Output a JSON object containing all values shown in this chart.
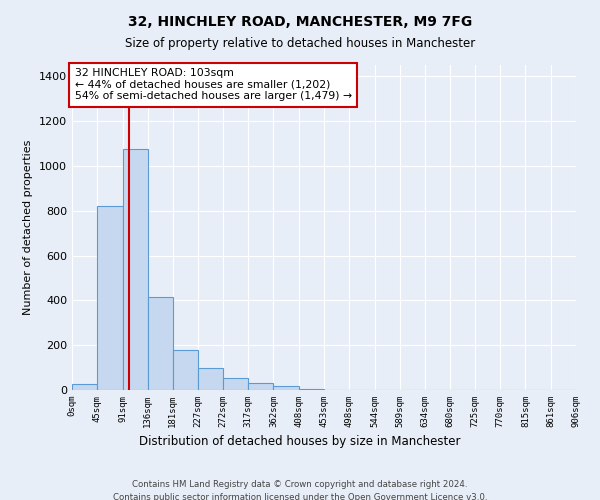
{
  "title1": "32, HINCHLEY ROAD, MANCHESTER, M9 7FG",
  "title2": "Size of property relative to detached houses in Manchester",
  "xlabel": "Distribution of detached houses by size in Manchester",
  "ylabel": "Number of detached properties",
  "bar_values": [
    25,
    820,
    1075,
    415,
    178,
    98,
    55,
    30,
    18,
    5,
    2,
    1,
    0,
    0,
    0,
    0,
    0,
    0,
    0,
    0
  ],
  "bin_edges": [
    0,
    45,
    91,
    136,
    181,
    227,
    272,
    317,
    362,
    408,
    453,
    498,
    544,
    589,
    634,
    680,
    725,
    770,
    815,
    861,
    906
  ],
  "tick_labels": [
    "0sqm",
    "45sqm",
    "91sqm",
    "136sqm",
    "181sqm",
    "227sqm",
    "272sqm",
    "317sqm",
    "362sqm",
    "408sqm",
    "453sqm",
    "498sqm",
    "544sqm",
    "589sqm",
    "634sqm",
    "680sqm",
    "725sqm",
    "770sqm",
    "815sqm",
    "861sqm",
    "906sqm"
  ],
  "bar_color": "#c5d8ef",
  "bar_edge_color": "#5b9bd5",
  "vline_x": 103,
  "vline_color": "#cc0000",
  "annotation_text": "32 HINCHLEY ROAD: 103sqm\n← 44% of detached houses are smaller (1,202)\n54% of semi-detached houses are larger (1,479) →",
  "annotation_box_color": "#ffffff",
  "annotation_box_edge": "#cc0000",
  "ylim": [
    0,
    1450
  ],
  "yticks": [
    0,
    200,
    400,
    600,
    800,
    1000,
    1200,
    1400
  ],
  "footer1": "Contains HM Land Registry data © Crown copyright and database right 2024.",
  "footer2": "Contains public sector information licensed under the Open Government Licence v3.0.",
  "bg_color": "#e8eef7",
  "plot_bg_color": "#e8eef7"
}
